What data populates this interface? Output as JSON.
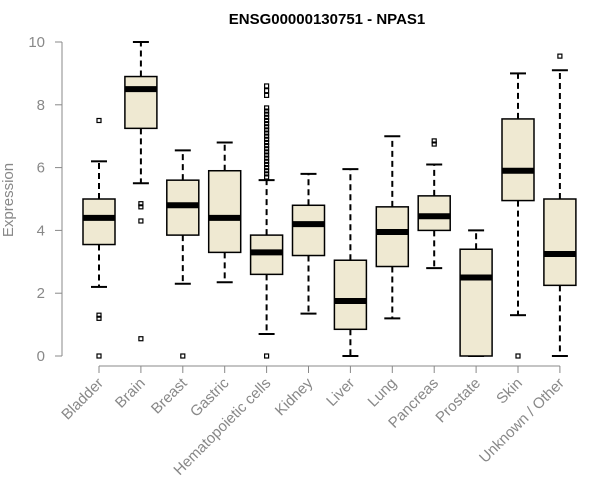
{
  "chart_data": {
    "type": "boxplot",
    "title": "ENSG00000130751 - NPAS1",
    "xlabel": "",
    "ylabel": "Expression",
    "ylim": [
      0,
      10
    ],
    "yticks": [
      0,
      2,
      4,
      6,
      8,
      10
    ],
    "box_fill": "#efe9d2",
    "categories": [
      "Bladder",
      "Brain",
      "Breast",
      "Gastric",
      "Hematopoietic cells",
      "Kidney",
      "Liver",
      "Lung",
      "Pancreas",
      "Prostate",
      "Skin",
      "Unknown / Other"
    ],
    "boxes": [
      {
        "name": "Bladder",
        "q1": 3.55,
        "median": 4.4,
        "q3": 5.0,
        "whisker_low": 2.2,
        "whisker_high": 6.2,
        "outliers": [
          7.5,
          1.3,
          1.2,
          0.0
        ]
      },
      {
        "name": "Brain",
        "q1": 7.25,
        "median": 8.5,
        "q3": 8.9,
        "whisker_low": 5.5,
        "whisker_high": 10.0,
        "outliers": [
          4.85,
          4.75,
          4.3,
          0.55
        ]
      },
      {
        "name": "Breast",
        "q1": 3.85,
        "median": 4.8,
        "q3": 5.6,
        "whisker_low": 2.3,
        "whisker_high": 6.55,
        "outliers": [
          0.0
        ]
      },
      {
        "name": "Gastric",
        "q1": 3.3,
        "median": 4.4,
        "q3": 5.9,
        "whisker_low": 2.35,
        "whisker_high": 6.8,
        "outliers": []
      },
      {
        "name": "Hematopoietic cells",
        "q1": 2.6,
        "median": 3.3,
        "q3": 3.85,
        "whisker_low": 0.7,
        "whisker_high": 5.6,
        "outliers": [
          5.7,
          5.8,
          5.9,
          6.0,
          6.1,
          6.2,
          6.3,
          6.4,
          6.5,
          6.6,
          6.7,
          6.8,
          6.9,
          7.0,
          7.1,
          7.2,
          7.3,
          7.4,
          7.5,
          7.6,
          7.7,
          7.8,
          7.9,
          8.3,
          8.45,
          8.6,
          0.0
        ]
      },
      {
        "name": "Kidney",
        "q1": 3.2,
        "median": 4.2,
        "q3": 4.8,
        "whisker_low": 1.35,
        "whisker_high": 5.8,
        "outliers": []
      },
      {
        "name": "Liver",
        "q1": 0.85,
        "median": 1.75,
        "q3": 3.05,
        "whisker_low": 0.0,
        "whisker_high": 5.95,
        "outliers": []
      },
      {
        "name": "Lung",
        "q1": 2.85,
        "median": 3.95,
        "q3": 4.75,
        "whisker_low": 1.2,
        "whisker_high": 7.0,
        "outliers": []
      },
      {
        "name": "Pancreas",
        "q1": 4.0,
        "median": 4.45,
        "q3": 5.1,
        "whisker_low": 2.8,
        "whisker_high": 6.1,
        "outliers": [
          6.75,
          6.85
        ]
      },
      {
        "name": "Prostate",
        "q1": 0.0,
        "median": 2.5,
        "q3": 3.4,
        "whisker_low": 0.0,
        "whisker_high": 4.0,
        "outliers": []
      },
      {
        "name": "Skin",
        "q1": 4.95,
        "median": 5.9,
        "q3": 7.55,
        "whisker_low": 1.3,
        "whisker_high": 9.0,
        "outliers": [
          0.0
        ]
      },
      {
        "name": "Unknown / Other",
        "q1": 2.25,
        "median": 3.25,
        "q3": 5.0,
        "whisker_low": 0.0,
        "whisker_high": 9.1,
        "outliers": [
          9.55
        ]
      }
    ]
  }
}
